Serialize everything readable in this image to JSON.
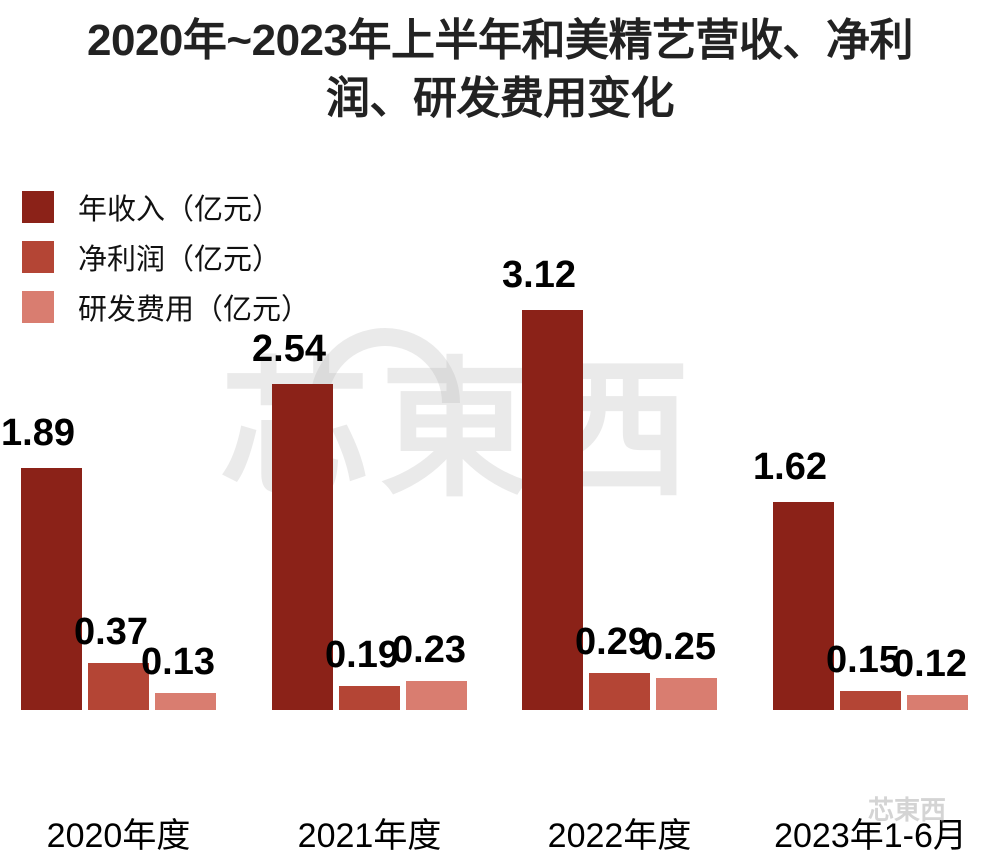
{
  "chart_data": {
    "type": "bar",
    "title": "2020年~2023年上半年和美精艺营收、净利润、研发费用变化",
    "title_lines": [
      "2020年~2023年上半年和美精艺营收、净利",
      "润、研发费用变化"
    ],
    "categories": [
      "2020年度",
      "2021年度",
      "2022年度",
      "2023年1-6月"
    ],
    "series": [
      {
        "name": "年收入（亿元）",
        "color": "#8b2218",
        "values": [
          1.89,
          2.54,
          3.12,
          1.62
        ]
      },
      {
        "name": "净利润（亿元）",
        "color": "#b44535",
        "values": [
          0.37,
          0.19,
          0.29,
          0.15
        ]
      },
      {
        "name": "研发费用（亿元）",
        "color": "#d97d70",
        "values": [
          0.13,
          0.23,
          0.25,
          0.12
        ]
      }
    ],
    "value_labels": [
      [
        "1.89",
        "0.37",
        "0.13"
      ],
      [
        "2.54",
        "0.19",
        "0.23"
      ],
      [
        "3.12",
        "0.29",
        "0.25"
      ],
      [
        "1.62",
        "0.15",
        "0.12"
      ]
    ],
    "xlabel": "",
    "ylabel": "",
    "ylim": [
      0,
      3.5
    ],
    "grid": false,
    "legend_position": "top-left",
    "watermark": "芯東西"
  }
}
